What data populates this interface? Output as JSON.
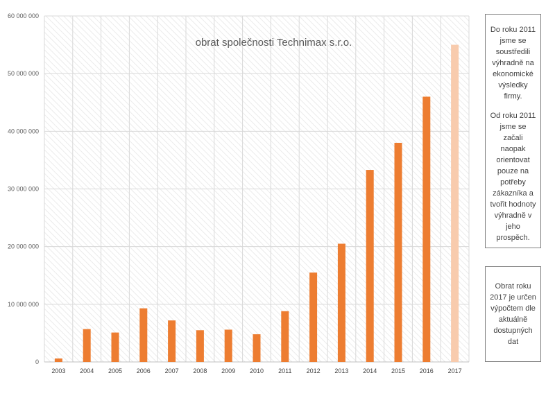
{
  "chart_data": {
    "type": "bar",
    "title": "obrat společnosti Technimax s.r.o.",
    "xlabel": "",
    "ylabel": "",
    "ylim": [
      0,
      60000000
    ],
    "y_ticks": [
      0,
      10000000,
      20000000,
      30000000,
      40000000,
      50000000,
      60000000
    ],
    "y_tick_labels": [
      "0",
      "10 000 000",
      "20 000 000",
      "30 000 000",
      "40 000 000",
      "50 000 000",
      "60 000 000"
    ],
    "categories": [
      "2003",
      "2004",
      "2005",
      "2006",
      "2007",
      "2008",
      "2009",
      "2010",
      "2011",
      "2012",
      "2013",
      "2014",
      "2015",
      "2016",
      "2017"
    ],
    "values": [
      600000,
      5700000,
      5100000,
      9300000,
      7200000,
      5500000,
      5600000,
      4800000,
      8800000,
      15500000,
      20500000,
      33300000,
      38000000,
      46000000,
      55000000
    ],
    "estimated_categories": [
      "2017"
    ],
    "colors": {
      "bar": "#ed7d31",
      "bar_estimated": "#f8cbad",
      "grid": "#d9d9d9",
      "plot_hatch": "#e6e6e6"
    },
    "grid": true,
    "legend": "none"
  },
  "notes": {
    "focus": {
      "paragraphs": [
        "Do roku 2011 jsme se soustředili výhradně na ekonomické výsledky firmy.",
        "Od roku 2011 jsme se začali naopak orientovat pouze na potřeby zákazníka a tvořit hodnoty výhradně v jeho prospěch."
      ]
    },
    "estimate": {
      "text": "Obrat roku 2017 je určen výpočtem dle aktuálně dostupných dat"
    }
  }
}
